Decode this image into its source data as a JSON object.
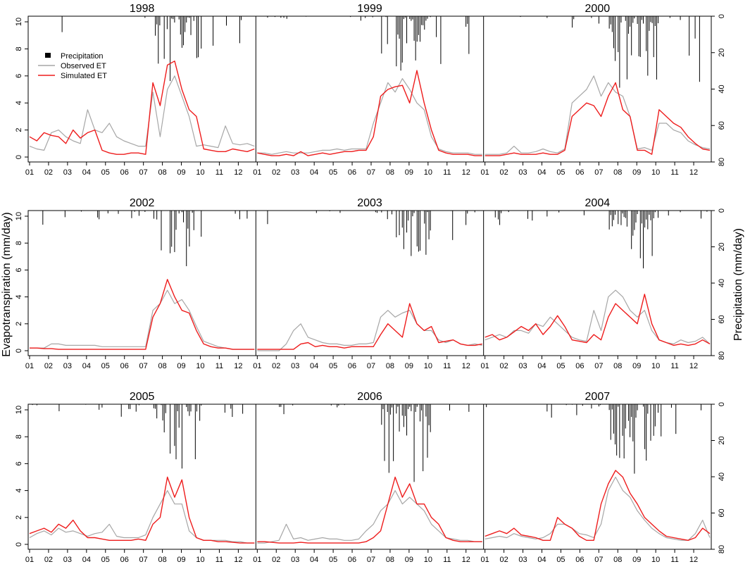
{
  "figure": {
    "ylabel_left": "Evapotranspiration (mm/day)",
    "ylabel_right": "Precipitation (mm/day)"
  },
  "legend": {
    "position": "top-left of first row",
    "entries": [
      {
        "label": "Precipitation",
        "color": "#000000",
        "symbol": "square"
      },
      {
        "label": "Observed ET",
        "color": "#a6a6a6",
        "symbol": "line"
      },
      {
        "label": "Simulated ET",
        "color": "#ee1c1c",
        "symbol": "line"
      }
    ]
  },
  "colors": {
    "observed": "#a6a6a6",
    "simulated": "#ee1c1c",
    "precipitation": "#000000"
  },
  "chart_data": [
    {
      "type": "line",
      "row": 1,
      "panels": [
        "1998",
        "1999",
        "2000"
      ],
      "x_ticks": [
        "01",
        "02",
        "03",
        "04",
        "05",
        "06",
        "07",
        "08",
        "09",
        "10",
        "11",
        "12"
      ],
      "ylim_left": [
        0,
        10
      ],
      "yticks_left": [
        0,
        2,
        4,
        6,
        8,
        10
      ],
      "ylim_right_reversed": [
        0,
        80
      ],
      "yticks_right": [
        0,
        20,
        40,
        60,
        80
      ],
      "series": [
        {
          "name": "Simulated ET",
          "values_by_panel": [
            [
              1.5,
              1.2,
              1.8,
              1.6,
              1.5,
              1.0,
              2.0,
              1.4,
              1.8,
              2.0,
              0.5,
              0.3,
              0.2,
              0.2,
              0.3,
              0.3,
              0.2,
              5.5,
              3.8,
              6.8,
              7.1,
              5.0,
              3.5,
              3.0,
              0.6,
              0.5,
              0.4,
              0.4,
              0.6,
              0.5,
              0.4,
              0.6
            ],
            [
              0.3,
              0.2,
              0.1,
              0.1,
              0.2,
              0.1,
              0.4,
              0.1,
              0.2,
              0.3,
              0.2,
              0.3,
              0.4,
              0.4,
              0.5,
              0.5,
              1.5,
              4.5,
              5.0,
              5.2,
              5.3,
              4.0,
              6.4,
              4.0,
              2.0,
              0.5,
              0.3,
              0.2,
              0.2,
              0.2,
              0.1,
              0.1
            ],
            [
              0.1,
              0.1,
              0.1,
              0.2,
              0.3,
              0.2,
              0.2,
              0.2,
              0.3,
              0.2,
              0.2,
              0.5,
              3.0,
              3.5,
              4.0,
              3.8,
              3.0,
              4.5,
              5.5,
              3.5,
              3.0,
              0.5,
              0.5,
              0.2,
              3.5,
              3.0,
              2.5,
              2.2,
              1.5,
              1.0,
              0.6,
              0.5
            ]
          ]
        },
        {
          "name": "Observed ET",
          "values_by_panel": [
            [
              0.8,
              0.6,
              0.5,
              1.8,
              2.0,
              1.5,
              1.2,
              1.0,
              3.5,
              2.0,
              1.8,
              2.5,
              1.5,
              1.2,
              1.0,
              0.8,
              0.8,
              4.8,
              1.5,
              5.0,
              6.0,
              4.5,
              3.0,
              0.8,
              0.9,
              0.8,
              0.7,
              2.3,
              1.0,
              0.9,
              1.0,
              0.8
            ],
            [
              0.3,
              0.3,
              0.2,
              0.3,
              0.4,
              0.3,
              0.3,
              0.3,
              0.4,
              0.5,
              0.5,
              0.6,
              0.5,
              0.6,
              0.6,
              0.6,
              2.5,
              4.0,
              5.5,
              4.8,
              5.8,
              5.0,
              4.0,
              3.5,
              1.5,
              0.6,
              0.4,
              0.3,
              0.3,
              0.3,
              0.2,
              0.2
            ],
            [
              0.2,
              0.2,
              0.2,
              0.3,
              0.8,
              0.3,
              0.3,
              0.4,
              0.6,
              0.4,
              0.3,
              0.6,
              4.0,
              4.5,
              5.0,
              6.0,
              4.5,
              5.5,
              4.8,
              4.5,
              3.0,
              0.6,
              0.7,
              0.5,
              2.5,
              2.5,
              2.0,
              1.8,
              1.2,
              0.9,
              0.7,
              0.6
            ]
          ]
        }
      ]
    },
    {
      "type": "line",
      "row": 2,
      "panels": [
        "2002",
        "2003",
        "2004"
      ],
      "x_ticks": [
        "01",
        "02",
        "03",
        "04",
        "05",
        "06",
        "07",
        "08",
        "09",
        "10",
        "11",
        "12"
      ],
      "ylim_left": [
        0,
        10
      ],
      "yticks_left": [
        0,
        2,
        4,
        6,
        8,
        10
      ],
      "ylim_right_reversed": [
        0,
        80
      ],
      "yticks_right": [
        0,
        20,
        40,
        60,
        80
      ],
      "series": [
        {
          "name": "Simulated ET",
          "values_by_panel": [
            [
              0.2,
              0.2,
              0.15,
              0.15,
              0.1,
              0.1,
              0.1,
              0.1,
              0.1,
              0.1,
              0.1,
              0.1,
              0.1,
              0.1,
              0.1,
              0.1,
              0.1,
              2.5,
              3.5,
              5.3,
              4.0,
              3.0,
              2.8,
              1.5,
              0.5,
              0.3,
              0.2,
              0.2,
              0.1,
              0.1,
              0.1,
              0.1
            ],
            [
              0.1,
              0.1,
              0.1,
              0.1,
              0.1,
              0.1,
              0.5,
              0.6,
              0.3,
              0.4,
              0.3,
              0.3,
              0.2,
              0.3,
              0.3,
              0.3,
              0.3,
              1.2,
              2.0,
              1.5,
              1.0,
              3.5,
              2.0,
              1.5,
              1.8,
              0.6,
              0.7,
              0.8,
              0.5,
              0.4,
              0.4,
              0.5
            ],
            [
              1.0,
              1.2,
              0.8,
              1.0,
              1.4,
              1.8,
              1.5,
              2.0,
              1.2,
              1.8,
              2.6,
              1.8,
              0.8,
              0.7,
              0.6,
              1.2,
              0.8,
              2.5,
              3.5,
              3.0,
              2.5,
              2.0,
              4.2,
              2.0,
              0.8,
              0.6,
              0.4,
              0.5,
              0.4,
              0.5,
              0.8,
              0.5
            ]
          ]
        },
        {
          "name": "Observed ET",
          "values_by_panel": [
            [
              0.2,
              0.2,
              0.2,
              0.5,
              0.5,
              0.4,
              0.4,
              0.4,
              0.4,
              0.4,
              0.3,
              0.3,
              0.3,
              0.3,
              0.3,
              0.3,
              0.3,
              3.0,
              3.5,
              4.5,
              3.5,
              3.8,
              3.0,
              1.8,
              0.7,
              0.5,
              0.3,
              0.2,
              0.1,
              0.1,
              0.1,
              0.1
            ],
            [
              0.0,
              0.0,
              0.0,
              0.0,
              0.5,
              1.5,
              2.0,
              1.0,
              0.8,
              0.6,
              0.5,
              0.5,
              0.4,
              0.4,
              0.5,
              0.5,
              0.6,
              2.5,
              3.0,
              2.5,
              2.8,
              3.0,
              2.0,
              1.5,
              1.5,
              0.8,
              0.6,
              0.8,
              0.5,
              0.4,
              0.5,
              0.4
            ],
            [
              0.8,
              1.0,
              1.2,
              1.0,
              1.5,
              1.5,
              1.3,
              2.0,
              1.8,
              2.5,
              2.0,
              1.5,
              1.0,
              0.8,
              0.7,
              3.0,
              1.5,
              4.0,
              4.5,
              4.0,
              3.0,
              2.5,
              3.0,
              1.5,
              0.8,
              0.6,
              0.5,
              0.8,
              0.6,
              0.7,
              1.0,
              0.5
            ]
          ]
        }
      ]
    },
    {
      "type": "line",
      "row": 3,
      "panels": [
        "2005",
        "2006",
        "2007"
      ],
      "x_ticks": [
        "01",
        "02",
        "03",
        "04",
        "05",
        "06",
        "07",
        "08",
        "09",
        "10",
        "11",
        "12"
      ],
      "ylim_left": [
        0,
        10
      ],
      "yticks_left": [
        0,
        2,
        4,
        6,
        8,
        10
      ],
      "ylim_right_reversed": [
        0,
        80
      ],
      "yticks_right": [
        0,
        20,
        40,
        60,
        80
      ],
      "series": [
        {
          "name": "Simulated ET",
          "values_by_panel": [
            [
              0.8,
              1.0,
              1.2,
              0.9,
              1.5,
              1.2,
              1.8,
              1.0,
              0.5,
              0.5,
              0.4,
              0.3,
              0.3,
              0.3,
              0.3,
              0.4,
              0.3,
              1.5,
              2.0,
              5.0,
              3.5,
              4.8,
              2.0,
              0.5,
              0.3,
              0.3,
              0.2,
              0.2,
              0.15,
              0.1,
              0.1,
              0.1
            ],
            [
              0.2,
              0.2,
              0.15,
              0.1,
              0.1,
              0.1,
              0.15,
              0.1,
              0.1,
              0.1,
              0.1,
              0.1,
              0.1,
              0.1,
              0.1,
              0.2,
              0.5,
              1.0,
              3.0,
              5.0,
              3.5,
              4.5,
              3.0,
              3.0,
              2.0,
              1.5,
              0.5,
              0.3,
              0.2,
              0.2,
              0.2,
              0.2
            ],
            [
              0.6,
              0.8,
              1.0,
              0.8,
              1.2,
              0.7,
              0.6,
              0.5,
              0.3,
              0.3,
              2.0,
              1.5,
              1.2,
              0.6,
              0.3,
              0.3,
              3.0,
              4.5,
              5.5,
              5.0,
              3.8,
              3.0,
              2.0,
              1.5,
              1.0,
              0.6,
              0.5,
              0.4,
              0.3,
              0.5,
              1.2,
              0.8
            ]
          ]
        },
        {
          "name": "Observed ET",
          "values_by_panel": [
            [
              0.5,
              0.8,
              1.0,
              0.7,
              1.2,
              0.9,
              1.0,
              0.8,
              0.6,
              0.8,
              0.9,
              1.5,
              0.6,
              0.5,
              0.5,
              0.5,
              0.7,
              2.0,
              3.0,
              4.0,
              3.0,
              3.0,
              1.0,
              0.5,
              0.3,
              0.3,
              0.3,
              0.3,
              0.2,
              0.2,
              0.1,
              0.1
            ],
            [
              0.1,
              0.1,
              0.2,
              0.3,
              1.5,
              0.4,
              0.5,
              0.3,
              0.4,
              0.5,
              0.4,
              0.4,
              0.3,
              0.3,
              0.4,
              1.0,
              1.5,
              2.5,
              3.0,
              4.0,
              3.0,
              3.5,
              3.0,
              2.5,
              1.5,
              1.0,
              0.5,
              0.4,
              0.3,
              0.3,
              0.2,
              0.2
            ],
            [
              0.4,
              0.5,
              0.6,
              0.5,
              0.8,
              0.6,
              0.5,
              0.4,
              0.5,
              0.8,
              1.5,
              1.5,
              1.2,
              0.8,
              0.7,
              0.5,
              1.5,
              4.0,
              5.0,
              4.0,
              3.5,
              2.5,
              1.8,
              1.2,
              0.8,
              0.5,
              0.4,
              0.3,
              0.3,
              0.8,
              1.8,
              0.5
            ]
          ]
        }
      ]
    }
  ]
}
